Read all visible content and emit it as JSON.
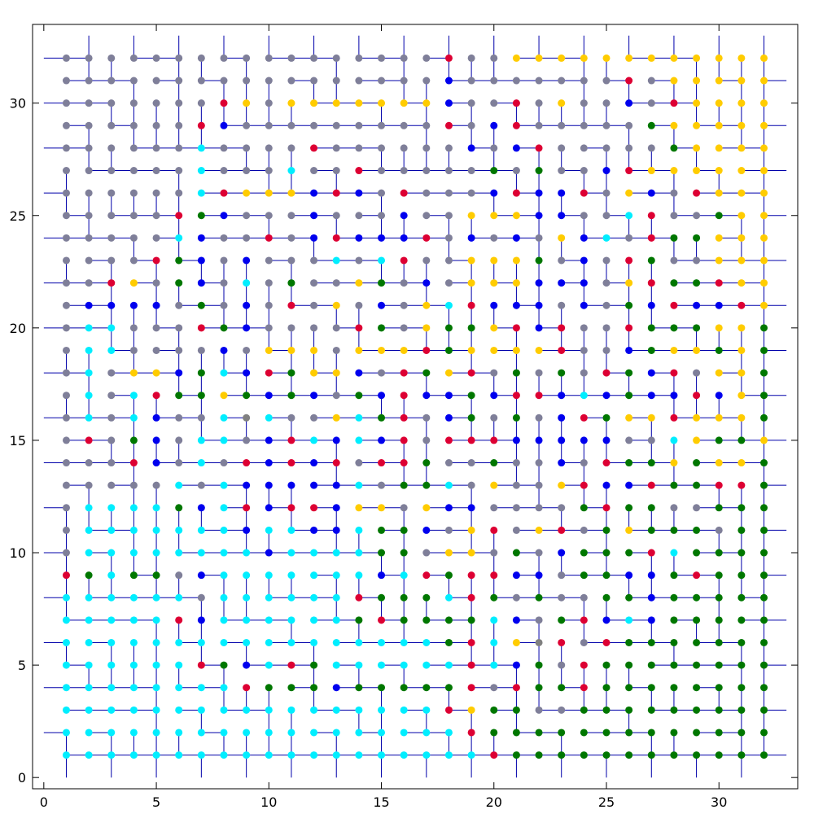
{
  "chart_data": {
    "type": "scatter",
    "title": "",
    "xlabel": "",
    "ylabel": "",
    "xlim": [
      -0.5,
      33.5
    ],
    "ylim": [
      -0.5,
      33.5
    ],
    "xticks": [
      0,
      5,
      10,
      15,
      20,
      25,
      30
    ],
    "yticks": [
      0,
      5,
      10,
      15,
      20,
      25,
      30
    ],
    "xtick_labels": [
      "0",
      "5",
      "10",
      "15",
      "20",
      "25",
      "30"
    ],
    "ytick_labels": [
      "0",
      "5",
      "10",
      "15",
      "20",
      "25",
      "30"
    ],
    "grid": false,
    "legend": "none",
    "lattice": {
      "x_range": [
        1,
        32
      ],
      "y_range": [
        1,
        32
      ]
    },
    "maze_line_color": "#0000aa",
    "palette": {
      "g": "#7f7f99",
      "y": "#ffcc00",
      "c": "#00eeff",
      "r": "#dd0033",
      "b": "#0000ee",
      "k": "#007700",
      "o": "#808080"
    },
    "series_legend": {
      "g": "slate gray",
      "y": "gold",
      "c": "cyan",
      "r": "crimson",
      "b": "blue",
      "k": "green",
      "o": "gray"
    },
    "grid_rows_top_to_bottom": [
      "gggggggggggggggggrggyyyyyyyyyyyy",
      "gggggggggggggggggbgggggggrgyyyyy",
      "gggggggrygyyyyyyybggrgyggbgryyyy",
      "ggggggrbgggggggggrgbrgggggkyyyyy",
      "ggggggcggggrggggggbgbrgggggkyyyy",
      "ggggggcgggcggrgggggkgkggbryyyyyy",
      "ggggggcryyybrbgrgggbrbbrgybgryyy",
      "gggggrkbgggbgggbggyyybbggcrggkyy",
      "gggggcbggrgbrbbbrgbgbgybcgrkkyyy",
      "ggggrkbgbgggcgcrggyyykgbgrkggyyy",
      "ggrygkbgcgkggykgbgyyybbbgyrkkryy",
      "gbbbbgkgbgrgygbgycrbbbgbgkbrbbry",
      "gccgggrkbggggrkgykkyrbrggrkkkyyk",
      "gccggggbgyyygyyyrkyyyyrggbkyykyk",
      "gcgyybkcbrkyybgrkyrgkgkgrkbrgyyk",
      "gcgcrkkykbkbgkbrbbkbrrbcbkbbrbyk",
      "gcgcbggcocggyckrgbkgkgbrkyyryyyk",
      "grgkbgccgbrcbcbrgrrrbbbbbggcykky",
      "gggrbgcgrbrbrgrrkggkggbgrkkykyyk",
      "gggggcgcbbbbbcgkkcgyggyrbbrkkrrk",
      "gcccckbcrbrrbyygybbggggkrkkggkkk",
      "gcccccccbccbbckkbgyrgyrgkykkkgkk",
      "gccccccccbcccckkgyygkgbkkkrckkkk",
      "rkckkgbcccccccbcrkrrbbgkkbbkrkkk",
      "ccccccgccccccrkkkcrkgkggkkbkkkkk",
      "cccccrbcccccckrkkkkcbgkrbcbkkkkk",
      "ccccccccccccccccckrcyorgrkkkkkkk",
      "ccccccrkbcrkccccccrcbkgrkkkkkkkk",
      "ccccccccrkkkbkkkkkrgrkkrkkkkkkkk",
      "cccccccccccccccccrykkggkkkkkkkkk",
      "ccccccccccccccccccrkkkkkkkkkkkkk",
      "cccccccccccccccccccrkkkkkkkkkkkk"
    ]
  }
}
